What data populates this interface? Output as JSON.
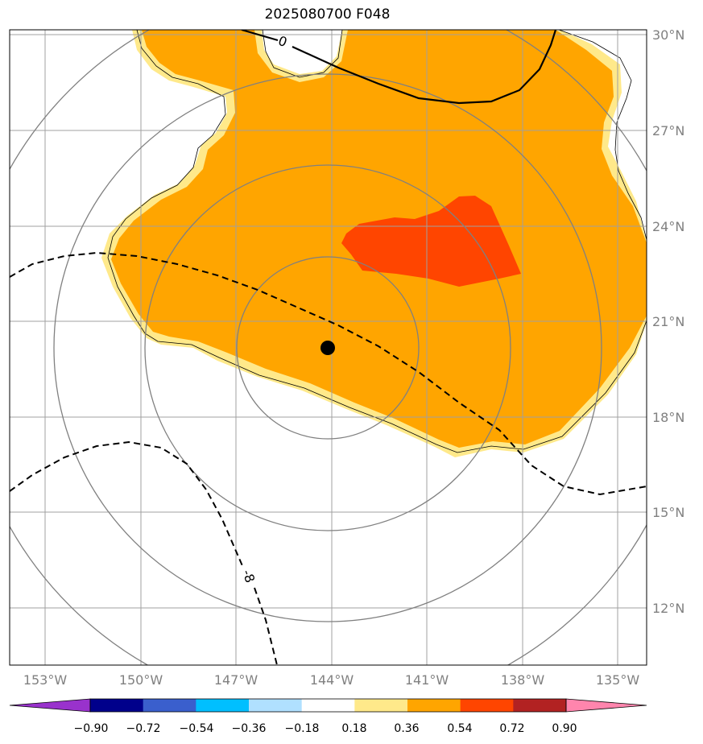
{
  "title": "2025080700 F048",
  "map": {
    "lon_ticks": [
      "153°W",
      "150°W",
      "147°W",
      "144°W",
      "141°W",
      "138°W",
      "135°W"
    ],
    "lat_ticks": [
      "30°N",
      "27°N",
      "24°N",
      "21°N",
      "18°N",
      "15°N",
      "12°N"
    ],
    "storm_center": {
      "lon": -144.0,
      "lat": 20.2
    },
    "range_rings": 4,
    "contour_labels": [
      "0",
      "-8"
    ]
  },
  "colorbar": {
    "levels": [
      "−0.90",
      "−0.72",
      "−0.54",
      "−0.36",
      "−0.18",
      "0.18",
      "0.36",
      "0.54",
      "0.72",
      "0.90"
    ],
    "colors": [
      "#9932cc",
      "#00008b",
      "#3a5fcd",
      "#00bfff",
      "#b0e0ff",
      "#ffffff",
      "#ffe98a",
      "#ffa500",
      "#ff4500",
      "#b22222",
      "#ff85ad"
    ]
  }
}
